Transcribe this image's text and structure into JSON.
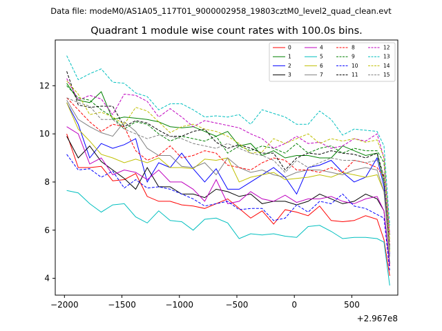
{
  "chart_data": {
    "type": "line",
    "suptitle": "Data file: modeM0/AS1A05_117T01_9000002958_19803cztM0_level2_quad_clean.evt",
    "title": "Quadrant 1 module wise count rates with 100.0s bins.",
    "xlabel": "",
    "ylabel": "",
    "x_offset_label": "+2.967e8",
    "xlim": [
      -2080,
      900
    ],
    "ylim": [
      3.3,
      13.9
    ],
    "xticks": [
      -2000,
      -1500,
      -1000,
      -500,
      0,
      500
    ],
    "xtick_labels": [
      "−2000",
      "−1500",
      "−1000",
      "−500",
      "0",
      "500"
    ],
    "yticks": [
      4,
      6,
      8,
      10,
      12
    ],
    "ytick_labels": [
      "4",
      "6",
      "8",
      "10",
      "12"
    ],
    "legend_position": "upper-right",
    "x": [
      -1980,
      -1880,
      -1780,
      -1680,
      -1580,
      -1480,
      -1380,
      -1280,
      -1180,
      -1080,
      -980,
      -880,
      -780,
      -680,
      -580,
      -480,
      -380,
      -280,
      -180,
      -80,
      20,
      120,
      220,
      320,
      420,
      520,
      620,
      720,
      780,
      830
    ],
    "series": [
      {
        "name": "0",
        "color": "#ff0000",
        "style": "solid",
        "values": [
          10.0,
          8.6,
          8.6,
          8.65,
          8.05,
          8.1,
          8.35,
          7.4,
          7.2,
          7.2,
          7.05,
          7.0,
          6.9,
          7.1,
          7.3,
          6.9,
          6.5,
          6.8,
          6.25,
          6.85,
          6.75,
          6.6,
          7.0,
          6.4,
          6.35,
          6.4,
          6.6,
          6.45,
          5.6,
          4.1
        ]
      },
      {
        "name": "1",
        "color": "#008000",
        "style": "solid",
        "values": [
          12.1,
          11.4,
          11.3,
          11.75,
          10.6,
          10.7,
          10.65,
          10.6,
          10.5,
          10.3,
          10.25,
          10.3,
          10.1,
          9.9,
          10.1,
          9.5,
          9.6,
          9.1,
          9.3,
          9.0,
          9.1,
          9.1,
          9.0,
          9.0,
          9.5,
          9.3,
          9.1,
          9.2,
          8.0,
          5.2
        ]
      },
      {
        "name": "2",
        "color": "#0000ff",
        "style": "solid",
        "values": [
          11.3,
          10.4,
          9.0,
          9.6,
          9.4,
          9.55,
          9.8,
          8.0,
          8.8,
          8.6,
          9.2,
          8.55,
          8.0,
          8.55,
          7.7,
          7.7,
          8.0,
          8.3,
          8.6,
          8.2,
          7.5,
          8.6,
          8.7,
          8.9,
          8.4,
          8.0,
          8.2,
          9.0,
          7.8,
          5.0
        ]
      },
      {
        "name": "3",
        "color": "#000000",
        "style": "solid",
        "values": [
          9.9,
          9.0,
          9.5,
          8.85,
          8.5,
          8.15,
          7.7,
          8.6,
          7.8,
          7.8,
          7.5,
          7.5,
          7.35,
          7.7,
          7.6,
          7.4,
          7.5,
          7.1,
          7.2,
          7.2,
          7.05,
          7.2,
          7.5,
          7.3,
          7.1,
          7.2,
          7.5,
          7.3,
          6.8,
          4.6
        ]
      },
      {
        "name": "4",
        "color": "#bf00bf",
        "style": "solid",
        "values": [
          10.3,
          10.0,
          8.75,
          9.0,
          8.3,
          8.5,
          8.4,
          8.1,
          8.5,
          8.0,
          8.0,
          7.7,
          7.2,
          8.1,
          7.1,
          7.2,
          7.6,
          7.3,
          7.2,
          7.45,
          7.15,
          7.3,
          7.3,
          7.4,
          7.2,
          7.1,
          7.3,
          7.4,
          6.8,
          4.5
        ]
      },
      {
        "name": "5",
        "color": "#00bfbf",
        "style": "solid",
        "values": [
          7.65,
          7.55,
          7.1,
          6.75,
          7.05,
          7.1,
          6.55,
          6.3,
          6.8,
          6.4,
          6.35,
          6.0,
          6.45,
          6.5,
          6.3,
          5.65,
          5.85,
          5.8,
          5.85,
          5.75,
          5.7,
          6.15,
          6.2,
          5.95,
          5.65,
          5.7,
          5.7,
          5.65,
          5.5,
          3.7
        ]
      },
      {
        "name": "6",
        "color": "#bfbf00",
        "style": "solid",
        "values": [
          11.3,
          10.2,
          9.7,
          9.15,
          9.0,
          8.8,
          8.95,
          8.8,
          9.0,
          8.6,
          8.6,
          8.55,
          8.95,
          8.9,
          9.0,
          8.0,
          8.2,
          8.3,
          8.4,
          8.1,
          8.15,
          8.2,
          8.3,
          8.2,
          8.4,
          8.3,
          8.2,
          8.3,
          7.6,
          5.1
        ]
      },
      {
        "name": "7",
        "color": "#808080",
        "style": "solid",
        "values": [
          11.4,
          10.6,
          10.3,
          10.05,
          9.9,
          10.5,
          10.1,
          9.4,
          9.1,
          9.1,
          8.65,
          8.6,
          8.8,
          8.3,
          9.0,
          8.6,
          8.4,
          8.5,
          8.3,
          8.2,
          8.4,
          8.5,
          8.5,
          8.4,
          8.3,
          8.5,
          8.6,
          8.5,
          7.6,
          4.9
        ]
      },
      {
        "name": "8",
        "color": "#ff0000",
        "style": "dashed",
        "values": [
          11.5,
          11.0,
          10.5,
          10.1,
          10.4,
          10.3,
          9.3,
          8.9,
          9.1,
          9.5,
          9.0,
          9.1,
          9.3,
          9.2,
          8.7,
          8.6,
          8.5,
          8.8,
          9.0,
          8.9,
          8.5,
          8.5,
          8.4,
          8.6,
          8.4,
          8.9,
          8.8,
          8.6,
          8.2,
          5.4
        ]
      },
      {
        "name": "9",
        "color": "#008000",
        "style": "dashed",
        "values": [
          12.0,
          11.5,
          11.4,
          11.0,
          10.7,
          10.2,
          10.5,
          10.4,
          10.0,
          9.7,
          9.9,
          9.8,
          9.7,
          9.9,
          9.2,
          9.5,
          9.3,
          9.5,
          9.4,
          9.2,
          9.6,
          9.2,
          9.4,
          9.5,
          9.2,
          9.4,
          9.3,
          9.3,
          8.8,
          5.8
        ]
      },
      {
        "name": "10",
        "color": "#0000ff",
        "style": "dashed",
        "values": [
          9.15,
          8.5,
          8.55,
          8.2,
          8.45,
          7.75,
          8.1,
          7.75,
          7.8,
          7.7,
          7.5,
          7.3,
          7.0,
          7.1,
          7.2,
          6.85,
          6.9,
          6.9,
          6.4,
          6.5,
          7.05,
          6.75,
          7.2,
          7.1,
          7.5,
          7.0,
          6.9,
          6.65,
          6.5,
          4.3
        ]
      },
      {
        "name": "11",
        "color": "#000000",
        "style": "dashed",
        "values": [
          12.6,
          11.2,
          11.1,
          11.15,
          11.15,
          10.3,
          10.55,
          10.45,
          10.15,
          9.9,
          9.9,
          10.1,
          10.2,
          9.65,
          9.4,
          9.55,
          9.4,
          9.2,
          9.2,
          8.5,
          9.0,
          9.2,
          9.15,
          9.3,
          9.2,
          9.15,
          9.0,
          9.2,
          8.2,
          5.3
        ]
      },
      {
        "name": "12",
        "color": "#bf00bf",
        "style": "dashed",
        "values": [
          12.3,
          11.4,
          11.6,
          11.45,
          10.8,
          11.65,
          11.6,
          11.35,
          10.7,
          11.05,
          10.7,
          10.3,
          10.55,
          10.45,
          10.35,
          10.25,
          10.0,
          9.8,
          9.4,
          9.6,
          9.9,
          9.6,
          9.65,
          9.4,
          9.5,
          9.8,
          9.7,
          10.0,
          9.0,
          5.8
        ]
      },
      {
        "name": "13",
        "color": "#00bfbf",
        "style": "dashed",
        "values": [
          13.25,
          12.25,
          12.5,
          12.7,
          12.15,
          12.1,
          11.7,
          11.55,
          11.0,
          11.25,
          11.25,
          11.0,
          10.7,
          10.75,
          10.7,
          10.8,
          10.4,
          11.0,
          10.85,
          10.7,
          10.4,
          10.4,
          10.95,
          10.6,
          9.95,
          10.2,
          10.15,
          10.1,
          9.5,
          6.2
        ]
      },
      {
        "name": "14",
        "color": "#bfbf00",
        "style": "dashed",
        "values": [
          12.2,
          11.65,
          10.8,
          10.9,
          10.7,
          10.4,
          11.1,
          10.95,
          10.5,
          10.05,
          10.3,
          10.4,
          10.2,
          10.1,
          9.9,
          9.6,
          9.2,
          9.25,
          9.8,
          9.6,
          9.8,
          10.0,
          9.6,
          9.8,
          9.7,
          9.8,
          9.65,
          9.75,
          9.0,
          5.6
        ]
      },
      {
        "name": "15",
        "color": "#808080",
        "style": "dashed",
        "values": [
          11.5,
          11.3,
          11.15,
          10.6,
          10.6,
          10.2,
          10.0,
          9.8,
          9.95,
          9.9,
          9.8,
          9.6,
          9.5,
          9.4,
          9.6,
          9.4,
          9.2,
          9.1,
          8.9,
          8.4,
          8.9,
          8.6,
          8.8,
          9.0,
          8.9,
          8.9,
          8.8,
          8.9,
          8.3,
          5.2
        ]
      }
    ]
  }
}
